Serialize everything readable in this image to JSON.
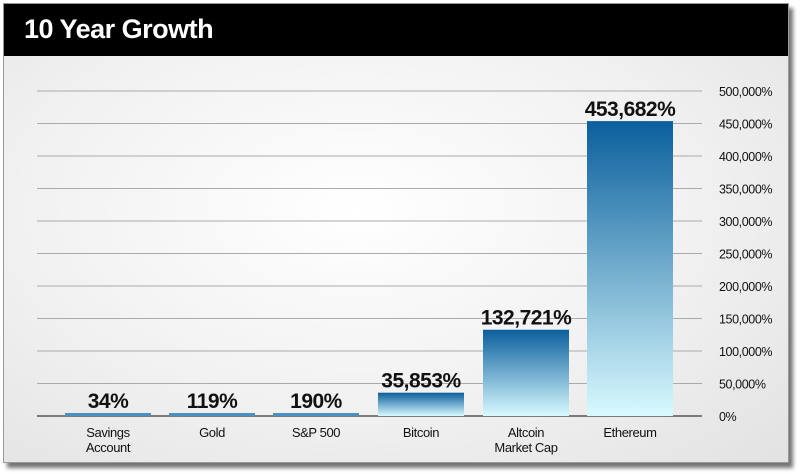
{
  "chart_data": {
    "type": "bar",
    "title": "10 Year Growth",
    "categories": [
      [
        "Savings",
        "Account"
      ],
      [
        "Gold"
      ],
      [
        "S&P 500"
      ],
      [
        "Bitcoin"
      ],
      [
        "Altcoin",
        "Market Cap"
      ],
      [
        "Ethereum"
      ]
    ],
    "values": [
      34,
      119,
      190,
      35853,
      132721,
      453682
    ],
    "data_labels": [
      "34%",
      "119%",
      "190%",
      "35,853%",
      "132,721%",
      "453,682%"
    ],
    "ylim": [
      0,
      500000
    ],
    "yticks": [
      0,
      50000,
      100000,
      150000,
      200000,
      250000,
      300000,
      350000,
      400000,
      450000,
      500000
    ],
    "ytick_labels": [
      "0%",
      "50,000%",
      "100,000%",
      "150,000%",
      "200,000%",
      "250,000%",
      "300,000%",
      "350,000%",
      "400,000%",
      "450,000%",
      "500,000%"
    ],
    "yaxis_position": "right",
    "grid": true,
    "xlabel": "",
    "ylabel": "",
    "colors": {
      "bar_top": "#0a5f9c",
      "bar_bottom": "#d9faff"
    }
  }
}
